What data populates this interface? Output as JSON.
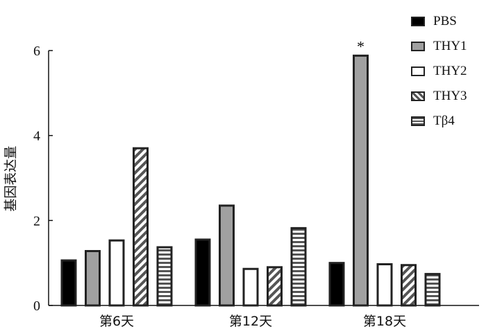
{
  "chart_data": {
    "type": "bar",
    "categories": [
      "第6天",
      "第12天",
      "第18天"
    ],
    "series": [
      {
        "name": "PBS",
        "values": [
          1.06,
          1.55,
          1.0
        ],
        "fill": "solid-black"
      },
      {
        "name": "THY1",
        "values": [
          1.28,
          2.35,
          5.88
        ],
        "fill": "solid-gray"
      },
      {
        "name": "THY2",
        "values": [
          1.53,
          0.86,
          0.97
        ],
        "fill": "white"
      },
      {
        "name": "THY3",
        "values": [
          3.7,
          0.9,
          0.95
        ],
        "fill": "diagonal-hatch"
      },
      {
        "name": "Tβ4",
        "values": [
          1.37,
          1.82,
          0.74
        ],
        "fill": "horizontal-stripes"
      }
    ],
    "ylabel": "基因表达量",
    "xlabel": "",
    "ylim": [
      0,
      6
    ],
    "yticks": [
      0,
      2,
      4,
      6
    ],
    "annotations": [
      {
        "text": "*",
        "category": "第18天",
        "series": "THY1"
      }
    ],
    "legend": "top-right",
    "grid": false,
    "colors": {
      "black": "#000000",
      "gray": "#a0a0a0",
      "border": "#222222",
      "stripe": "#555555"
    }
  }
}
